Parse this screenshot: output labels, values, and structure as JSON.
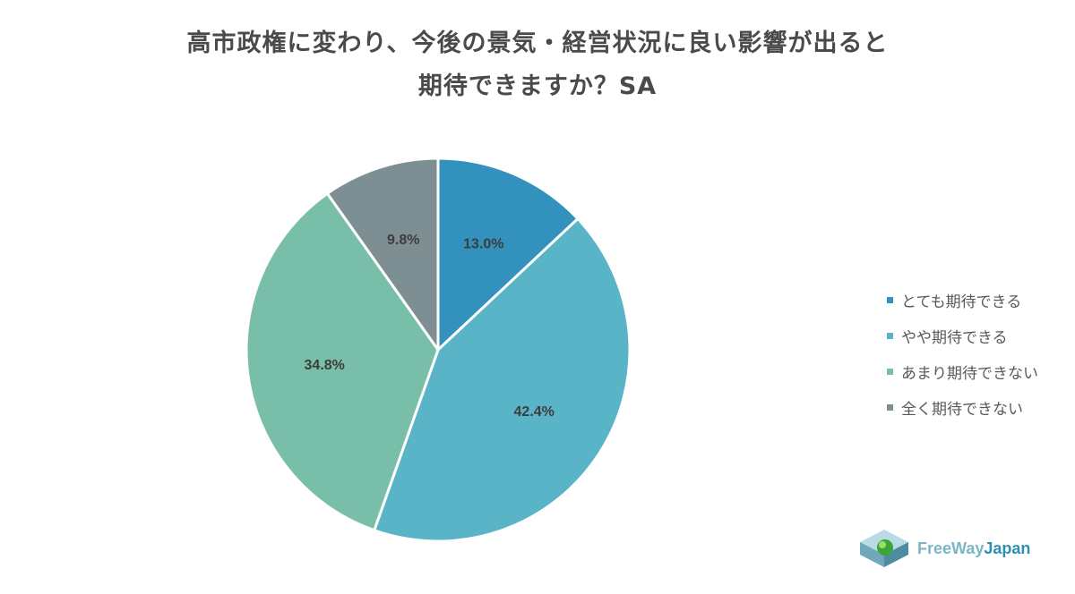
{
  "title_line1": "高市政権に変わり、今後の景気・経営状況に良い影響が出ると",
  "title_line2": "期待できますか？SA",
  "chart_data": {
    "type": "pie",
    "title": "高市政権に変わり、今後の景気・経営状況に良い影響が出ると期待できますか？SA",
    "start": "12 o'clock, clockwise",
    "legend_position": "right",
    "slices": [
      {
        "label": "とても期待できる",
        "value": 13.0,
        "display": "13.0%",
        "color": "#3292bd"
      },
      {
        "label": "やや期待できる",
        "value": 42.4,
        "display": "42.4%",
        "color": "#5ab4c7"
      },
      {
        "label": "あまり期待できない",
        "value": 34.8,
        "display": "34.8%",
        "color": "#79bea9"
      },
      {
        "label": "全く期待できない",
        "value": 9.8,
        "display": "9.8%",
        "color": "#7d8f92"
      }
    ]
  },
  "logo": {
    "part1": "FreeWay",
    "part2": "Japan"
  }
}
